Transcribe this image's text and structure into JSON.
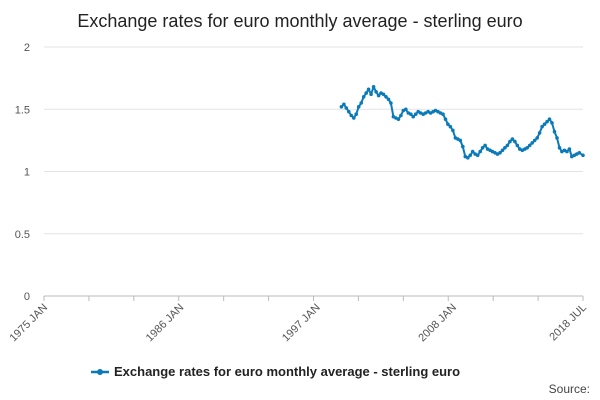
{
  "chart_data": {
    "type": "line",
    "title": "Exchange rates for euro monthly average - sterling euro",
    "xlabel": "",
    "ylabel": "",
    "ylim": [
      0,
      2
    ],
    "y_ticks": [
      "0",
      "0.5",
      "1",
      "1.5",
      "2"
    ],
    "x_range": [
      1975.0,
      2018.5
    ],
    "x_ticks": [
      {
        "label": "1975 JAN",
        "value": 1975.0
      },
      {
        "label": "1986 JAN",
        "value": 1986.0
      },
      {
        "label": "1997 JAN",
        "value": 1997.0
      },
      {
        "label": "2008 JAN",
        "value": 2008.0
      },
      {
        "label": "2018 JUL",
        "value": 2018.5
      }
    ],
    "grid": true,
    "legend_position": "bottom-center",
    "series": [
      {
        "name": "Exchange rates for euro monthly average - sterling euro",
        "color": "#0b7ab8",
        "x": [
          1999.0,
          1999.2,
          1999.4,
          1999.6,
          1999.8,
          2000.0,
          2000.2,
          2000.4,
          2000.6,
          2000.8,
          2001.0,
          2001.2,
          2001.4,
          2001.6,
          2001.8,
          2002.0,
          2002.2,
          2002.4,
          2002.6,
          2002.8,
          2003.0,
          2003.2,
          2003.4,
          2003.6,
          2003.8,
          2004.0,
          2004.2,
          2004.4,
          2004.6,
          2004.8,
          2005.0,
          2005.2,
          2005.4,
          2005.6,
          2005.8,
          2006.0,
          2006.2,
          2006.4,
          2006.6,
          2006.8,
          2007.0,
          2007.2,
          2007.4,
          2007.6,
          2007.8,
          2008.0,
          2008.2,
          2008.4,
          2008.6,
          2008.8,
          2009.0,
          2009.2,
          2009.4,
          2009.6,
          2009.8,
          2010.0,
          2010.2,
          2010.4,
          2010.6,
          2010.8,
          2011.0,
          2011.2,
          2011.4,
          2011.6,
          2011.8,
          2012.0,
          2012.2,
          2012.4,
          2012.6,
          2012.8,
          2013.0,
          2013.2,
          2013.4,
          2013.6,
          2013.8,
          2014.0,
          2014.2,
          2014.4,
          2014.6,
          2014.8,
          2015.0,
          2015.2,
          2015.4,
          2015.6,
          2015.8,
          2016.0,
          2016.2,
          2016.4,
          2016.6,
          2016.8,
          2017.0,
          2017.2,
          2017.4,
          2017.6,
          2017.8,
          2018.0,
          2018.2,
          2018.5
        ],
        "values": [
          1.52,
          1.54,
          1.51,
          1.48,
          1.45,
          1.43,
          1.46,
          1.52,
          1.55,
          1.6,
          1.63,
          1.66,
          1.62,
          1.68,
          1.64,
          1.61,
          1.63,
          1.62,
          1.6,
          1.58,
          1.55,
          1.44,
          1.43,
          1.42,
          1.45,
          1.49,
          1.5,
          1.47,
          1.46,
          1.44,
          1.46,
          1.48,
          1.47,
          1.46,
          1.47,
          1.48,
          1.47,
          1.48,
          1.49,
          1.48,
          1.47,
          1.46,
          1.42,
          1.38,
          1.36,
          1.33,
          1.27,
          1.26,
          1.25,
          1.2,
          1.12,
          1.11,
          1.13,
          1.16,
          1.14,
          1.13,
          1.16,
          1.19,
          1.21,
          1.18,
          1.17,
          1.16,
          1.15,
          1.14,
          1.15,
          1.17,
          1.19,
          1.21,
          1.24,
          1.26,
          1.24,
          1.21,
          1.18,
          1.17,
          1.18,
          1.19,
          1.21,
          1.23,
          1.25,
          1.27,
          1.31,
          1.36,
          1.38,
          1.4,
          1.42,
          1.39,
          1.32,
          1.27,
          1.19,
          1.16,
          1.17,
          1.16,
          1.18,
          1.12,
          1.13,
          1.14,
          1.15,
          1.13
        ]
      }
    ]
  },
  "source_label": "Source:"
}
